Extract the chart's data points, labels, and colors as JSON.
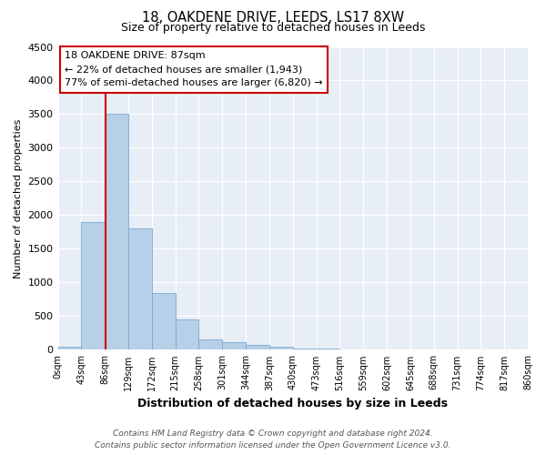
{
  "title1": "18, OAKDENE DRIVE, LEEDS, LS17 8XW",
  "title2": "Size of property relative to detached houses in Leeds",
  "xlabel": "Distribution of detached houses by size in Leeds",
  "ylabel": "Number of detached properties",
  "bin_edges": [
    0,
    43,
    86,
    129,
    172,
    215,
    258,
    301,
    344,
    387,
    430,
    473,
    516,
    559,
    602,
    645,
    688,
    731,
    774,
    817,
    860
  ],
  "bar_heights": [
    50,
    1900,
    3500,
    1800,
    850,
    450,
    155,
    110,
    70,
    40,
    20,
    15,
    10,
    5,
    3,
    2,
    2,
    2,
    1,
    1
  ],
  "bar_color": "#b8cfe8",
  "bar_edge_color": "#7aaad0",
  "property_line_x": 87,
  "property_line_color": "#cc0000",
  "annotation_title": "18 OAKDENE DRIVE: 87sqm",
  "annotation_line1": "← 22% of detached houses are smaller (1,943)",
  "annotation_line2": "77% of semi-detached houses are larger (6,820) →",
  "annotation_box_facecolor": "white",
  "annotation_box_edgecolor": "#cc0000",
  "ylim": [
    0,
    4500
  ],
  "yticks": [
    0,
    500,
    1000,
    1500,
    2000,
    2500,
    3000,
    3500,
    4000,
    4500
  ],
  "x_tick_labels": [
    "0sqm",
    "43sqm",
    "86sqm",
    "129sqm",
    "172sqm",
    "215sqm",
    "258sqm",
    "301sqm",
    "344sqm",
    "387sqm",
    "430sqm",
    "473sqm",
    "516sqm",
    "559sqm",
    "602sqm",
    "645sqm",
    "688sqm",
    "731sqm",
    "774sqm",
    "817sqm",
    "860sqm"
  ],
  "footer_line1": "Contains HM Land Registry data © Crown copyright and database right 2024.",
  "footer_line2": "Contains public sector information licensed under the Open Government Licence v3.0.",
  "background_color": "#e8eef6",
  "grid_color": "#ffffff",
  "fig_width": 6.0,
  "fig_height": 5.0,
  "fig_dpi": 100
}
